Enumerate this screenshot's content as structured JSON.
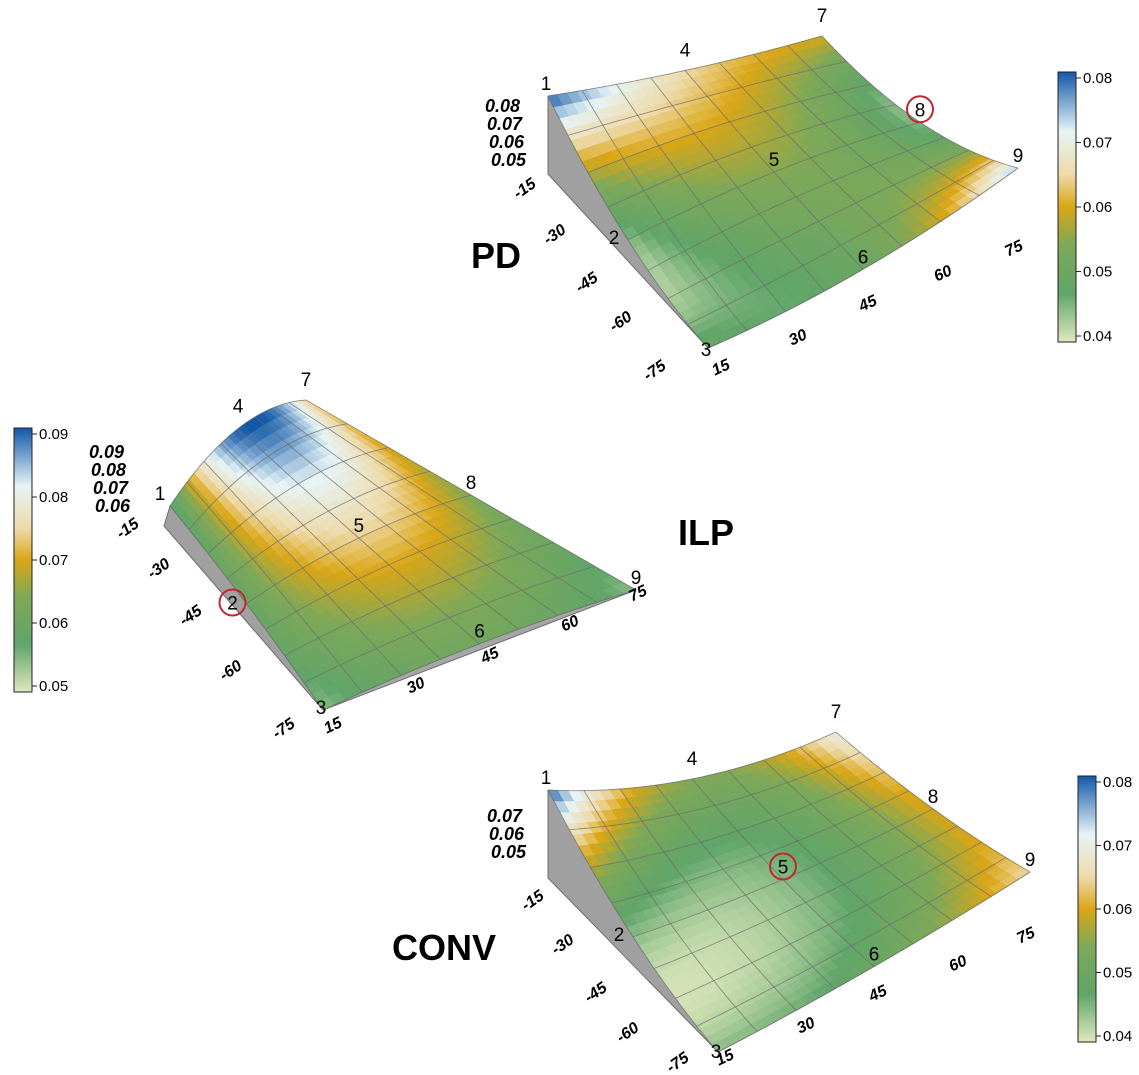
{
  "chart_data": [
    {
      "type": "surface",
      "title": "PD",
      "x_ticks": [
        "15",
        "30",
        "45",
        "60",
        "75"
      ],
      "y_ticks": [
        "-15",
        "-30",
        "-45",
        "-60",
        "-75"
      ],
      "z_ticks": [
        "0.08",
        "0.07",
        "0.06",
        "0.05"
      ],
      "colorbar": {
        "min": 0.04,
        "max": 0.08,
        "ticks": [
          "0.08",
          "0.07",
          "0.06",
          "0.05",
          "0.04"
        ]
      },
      "points": [
        {
          "label": "1",
          "x": 15,
          "y": -15,
          "z": 0.08,
          "circled": false
        },
        {
          "label": "2",
          "x": 15,
          "y": -45,
          "z": 0.045,
          "circled": false
        },
        {
          "label": "3",
          "x": 15,
          "y": -75,
          "z": 0.05,
          "circled": false
        },
        {
          "label": "4",
          "x": 45,
          "y": -15,
          "z": 0.065,
          "circled": false
        },
        {
          "label": "5",
          "x": 45,
          "y": -45,
          "z": 0.055,
          "circled": false
        },
        {
          "label": "6",
          "x": 45,
          "y": -75,
          "z": 0.05,
          "circled": false
        },
        {
          "label": "7",
          "x": 75,
          "y": -15,
          "z": 0.06,
          "circled": false
        },
        {
          "label": "8",
          "x": 75,
          "y": -45,
          "z": 0.045,
          "circled": true
        },
        {
          "label": "9",
          "x": 75,
          "y": -75,
          "z": 0.075,
          "circled": false
        }
      ]
    },
    {
      "type": "surface",
      "title": "ILP",
      "x_ticks": [
        "15",
        "30",
        "45",
        "60",
        "75"
      ],
      "y_ticks": [
        "-15",
        "-30",
        "-45",
        "-60",
        "-75"
      ],
      "z_ticks": [
        "0.09",
        "0.08",
        "0.07",
        "0.06"
      ],
      "colorbar": {
        "min": 0.05,
        "max": 0.092,
        "ticks": [
          "0.09",
          "0.08",
          "0.07",
          "0.06",
          "0.05"
        ]
      },
      "points": [
        {
          "label": "1",
          "x": 15,
          "y": -15,
          "z": 0.055,
          "circled": false
        },
        {
          "label": "2",
          "x": 15,
          "y": -45,
          "z": 0.06,
          "circled": true
        },
        {
          "label": "3",
          "x": 15,
          "y": -75,
          "z": 0.055,
          "circled": false
        },
        {
          "label": "4",
          "x": 45,
          "y": -15,
          "z": 0.092,
          "circled": false
        },
        {
          "label": "5",
          "x": 45,
          "y": -45,
          "z": 0.075,
          "circled": false
        },
        {
          "label": "6",
          "x": 45,
          "y": -75,
          "z": 0.062,
          "circled": false
        },
        {
          "label": "7",
          "x": 75,
          "y": -15,
          "z": 0.075,
          "circled": false
        },
        {
          "label": "8",
          "x": 75,
          "y": -45,
          "z": 0.065,
          "circled": false
        },
        {
          "label": "9",
          "x": 75,
          "y": -75,
          "z": 0.055,
          "circled": false
        }
      ]
    },
    {
      "type": "surface",
      "title": "CONV",
      "x_ticks": [
        "15",
        "30",
        "45",
        "60",
        "75"
      ],
      "y_ticks": [
        "-15",
        "-30",
        "-45",
        "-60",
        "-75"
      ],
      "z_ticks": [
        "0.07",
        "0.06",
        "0.05"
      ],
      "colorbar": {
        "min": 0.04,
        "max": 0.08,
        "ticks": [
          "0.08",
          "0.07",
          "0.06",
          "0.05",
          "0.04"
        ]
      },
      "points": [
        {
          "label": "1",
          "x": 15,
          "y": -15,
          "z": 0.08,
          "circled": false
        },
        {
          "label": "2",
          "x": 15,
          "y": -45,
          "z": 0.045,
          "circled": false
        },
        {
          "label": "3",
          "x": 15,
          "y": -75,
          "z": 0.045,
          "circled": false
        },
        {
          "label": "4",
          "x": 45,
          "y": -15,
          "z": 0.055,
          "circled": false
        },
        {
          "label": "5",
          "x": 45,
          "y": -45,
          "z": 0.045,
          "circled": true
        },
        {
          "label": "6",
          "x": 45,
          "y": -75,
          "z": 0.05,
          "circled": false
        },
        {
          "label": "7",
          "x": 75,
          "y": -15,
          "z": 0.07,
          "circled": false
        },
        {
          "label": "8",
          "x": 75,
          "y": -45,
          "z": 0.06,
          "circled": false
        },
        {
          "label": "9",
          "x": 75,
          "y": -75,
          "z": 0.065,
          "circled": false
        }
      ]
    }
  ]
}
